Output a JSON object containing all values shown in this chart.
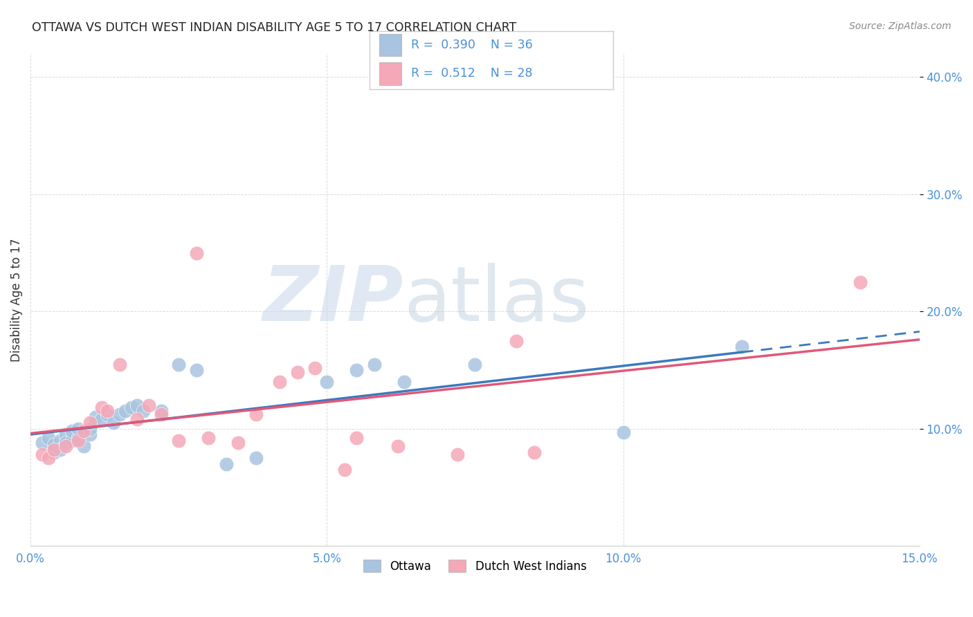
{
  "title": "OTTAWA VS DUTCH WEST INDIAN DISABILITY AGE 5 TO 17 CORRELATION CHART",
  "source": "Source: ZipAtlas.com",
  "ylabel": "Disability Age 5 to 17",
  "xlim": [
    0.0,
    0.15
  ],
  "ylim": [
    0.0,
    0.42
  ],
  "xticks": [
    0.0,
    0.05,
    0.1,
    0.15
  ],
  "yticks": [
    0.1,
    0.2,
    0.3,
    0.4
  ],
  "xticklabels": [
    "0.0%",
    "5.0%",
    "10.0%",
    "15.0%"
  ],
  "yticklabels": [
    "10.0%",
    "20.0%",
    "30.0%",
    "40.0%"
  ],
  "legend_labels": [
    "Ottawa",
    "Dutch West Indians"
  ],
  "ottawa_R": "0.390",
  "ottawa_N": "36",
  "dutch_R": "0.512",
  "dutch_N": "28",
  "watermark_zip": "ZIP",
  "watermark_atlas": "atlas",
  "ottawa_color": "#a8c4e0",
  "dutch_color": "#f4a8b8",
  "ottawa_line_color": "#3a7abf",
  "dutch_line_color": "#e05878",
  "ottawa_scatter": [
    [
      0.002,
      0.088
    ],
    [
      0.003,
      0.092
    ],
    [
      0.004,
      0.08
    ],
    [
      0.004,
      0.086
    ],
    [
      0.005,
      0.09
    ],
    [
      0.005,
      0.082
    ],
    [
      0.006,
      0.095
    ],
    [
      0.006,
      0.088
    ],
    [
      0.007,
      0.09
    ],
    [
      0.007,
      0.098
    ],
    [
      0.008,
      0.092
    ],
    [
      0.008,
      0.1
    ],
    [
      0.009,
      0.085
    ],
    [
      0.01,
      0.095
    ],
    [
      0.01,
      0.1
    ],
    [
      0.011,
      0.11
    ],
    [
      0.012,
      0.108
    ],
    [
      0.013,
      0.112
    ],
    [
      0.014,
      0.105
    ],
    [
      0.015,
      0.112
    ],
    [
      0.016,
      0.115
    ],
    [
      0.017,
      0.118
    ],
    [
      0.018,
      0.12
    ],
    [
      0.019,
      0.115
    ],
    [
      0.022,
      0.115
    ],
    [
      0.025,
      0.155
    ],
    [
      0.028,
      0.15
    ],
    [
      0.033,
      0.07
    ],
    [
      0.038,
      0.075
    ],
    [
      0.05,
      0.14
    ],
    [
      0.055,
      0.15
    ],
    [
      0.058,
      0.155
    ],
    [
      0.063,
      0.14
    ],
    [
      0.075,
      0.155
    ],
    [
      0.1,
      0.097
    ],
    [
      0.12,
      0.17
    ]
  ],
  "dutch_scatter": [
    [
      0.002,
      0.078
    ],
    [
      0.003,
      0.075
    ],
    [
      0.004,
      0.082
    ],
    [
      0.006,
      0.085
    ],
    [
      0.008,
      0.09
    ],
    [
      0.009,
      0.098
    ],
    [
      0.01,
      0.105
    ],
    [
      0.012,
      0.118
    ],
    [
      0.013,
      0.115
    ],
    [
      0.015,
      0.155
    ],
    [
      0.018,
      0.108
    ],
    [
      0.02,
      0.12
    ],
    [
      0.022,
      0.112
    ],
    [
      0.025,
      0.09
    ],
    [
      0.028,
      0.25
    ],
    [
      0.03,
      0.092
    ],
    [
      0.035,
      0.088
    ],
    [
      0.038,
      0.112
    ],
    [
      0.042,
      0.14
    ],
    [
      0.045,
      0.148
    ],
    [
      0.048,
      0.152
    ],
    [
      0.053,
      0.065
    ],
    [
      0.055,
      0.092
    ],
    [
      0.062,
      0.085
    ],
    [
      0.072,
      0.078
    ],
    [
      0.082,
      0.175
    ],
    [
      0.085,
      0.08
    ],
    [
      0.14,
      0.225
    ]
  ],
  "background_color": "#ffffff",
  "grid_color": "#d0d0d0",
  "tick_color": "#4a90d9"
}
